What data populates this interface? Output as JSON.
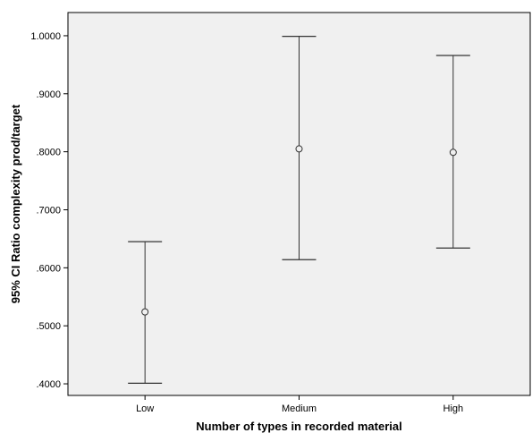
{
  "chart_data": {
    "type": "error_bar",
    "xlabel": "Number of types in recorded material",
    "ylabel": "95% CI Ratio complexity prod/target",
    "categories": [
      "Low",
      "Medium",
      "High"
    ],
    "means": [
      0.524,
      0.805,
      0.799
    ],
    "lower": [
      0.401,
      0.614,
      0.634
    ],
    "upper": [
      0.645,
      0.999,
      0.966
    ],
    "ylim": [
      0.38,
      1.04
    ],
    "yticks": [
      0.4,
      0.5,
      0.6,
      0.7,
      0.8,
      0.9,
      1.0
    ],
    "ytick_labels": [
      ".4000",
      ".5000",
      ".6000",
      ".7000",
      ".8000",
      ".9000",
      "1.0000"
    ],
    "grid": false,
    "colors": {
      "plot_background": "#f0f0f0",
      "marks": "#333333",
      "axis": "#000000"
    }
  }
}
